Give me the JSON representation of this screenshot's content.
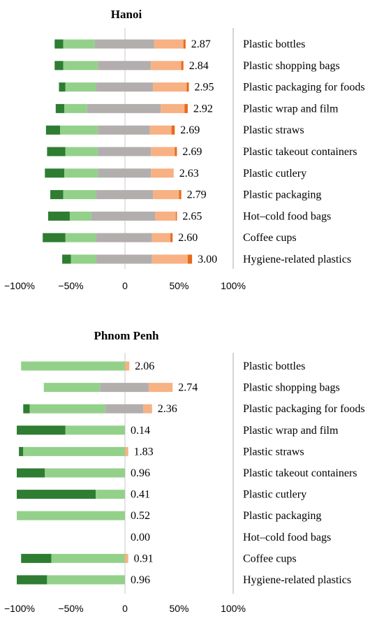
{
  "colors": {
    "strongly_negative": "#2e7d32",
    "negative": "#93d18a",
    "neutral": "#b3aeae",
    "positive": "#f7b183",
    "strongly_positive": "#e86a1c",
    "axis": "#c8c8c8",
    "divider": "#a9a9a9"
  },
  "chart_data": [
    {
      "type": "bar",
      "subtype": "diverging-stacked",
      "title": "Hanoi",
      "xlim": [
        -100,
        100
      ],
      "xticks": [
        "−100%",
        "−50%",
        "0",
        "50%",
        "100%"
      ],
      "categories": [
        "Plastic bottles",
        "Plastic shopping bags",
        "Plastic packaging for foods",
        "Plastic wrap and film",
        "Plastic straws",
        "Plastic takeout containers",
        "Plastic cutlery",
        "Plastic packaging",
        "Hot–cold food bags",
        "Coffee cups",
        "Hygiene-related plastics"
      ],
      "scores": [
        "2.87",
        "2.84",
        "2.95",
        "2.92",
        "2.69",
        "2.69",
        "2.63",
        "2.79",
        "2.65",
        "2.60",
        "3.00"
      ],
      "segments": [
        [
          -65,
          -57,
          -28,
          27,
          54,
          56
        ],
        [
          -65,
          -57,
          -25,
          24,
          52,
          54
        ],
        [
          -61,
          -55,
          -27,
          26,
          57,
          59
        ],
        [
          -64,
          -56,
          -35,
          33,
          55,
          58
        ],
        [
          -73,
          -60,
          -25,
          23,
          43,
          46
        ],
        [
          -72,
          -55,
          -25,
          24,
          46,
          48
        ],
        [
          -74,
          -56,
          -25,
          24,
          45,
          45
        ],
        [
          -69,
          -57,
          -27,
          26,
          50,
          52
        ],
        [
          -71,
          -51,
          -31,
          28,
          47,
          48
        ],
        [
          -76,
          -55,
          -27,
          25,
          42,
          44
        ],
        [
          -58,
          -50,
          -27,
          25,
          58,
          62
        ]
      ]
    },
    {
      "type": "bar",
      "subtype": "diverging-stacked",
      "title": "Phnom Penh",
      "xlim": [
        -100,
        100
      ],
      "xticks": [
        "−100%",
        "−50%",
        "0",
        "50%",
        "100%"
      ],
      "categories": [
        "Plastic bottles",
        "Plastic shopping bags",
        "Plastic packaging for foods",
        "Plastic wrap and film",
        "Plastic straws",
        "Plastic takeout containers",
        "Plastic cutlery",
        "Plastic packaging",
        "Hot–cold food bags",
        "Coffee cups",
        "Hygiene-related plastics"
      ],
      "scores": [
        "2.06",
        "2.74",
        "2.36",
        "0.14",
        "1.83",
        "0.96",
        "0.41",
        "0.52",
        "0.00",
        "0.91",
        "0.96"
      ],
      "segments": [
        [
          -96,
          -96,
          0,
          0,
          4,
          4
        ],
        [
          -75,
          -75,
          -23,
          22,
          44,
          44
        ],
        [
          -94,
          -88,
          -18,
          17,
          25,
          25
        ],
        [
          -100,
          -55,
          0,
          0,
          0,
          0
        ],
        [
          -98,
          -94,
          0,
          0,
          3,
          3
        ],
        [
          -100,
          -74,
          0,
          0,
          0,
          0
        ],
        [
          -100,
          -27,
          0,
          0,
          0,
          0
        ],
        [
          -100,
          -100,
          0,
          0,
          0,
          0
        ],
        [
          0,
          0,
          0,
          0,
          0,
          0
        ],
        [
          -96,
          -68,
          0,
          0,
          3,
          3
        ],
        [
          -100,
          -72,
          0,
          0,
          0,
          0
        ]
      ]
    }
  ]
}
